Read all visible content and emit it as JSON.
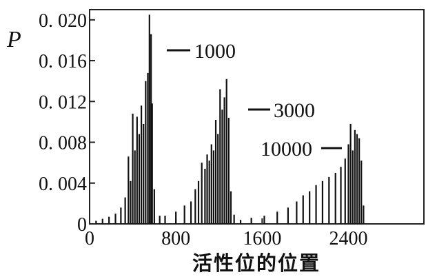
{
  "chart_data": {
    "type": "bar",
    "xlabel": "活性位的位置",
    "ylabel": "P",
    "xlim": [
      0,
      3100
    ],
    "ylim": [
      0,
      0.021
    ],
    "x_ticks": [
      "0",
      "800",
      "1600",
      "2400"
    ],
    "x_tick_values": [
      0,
      800,
      1600,
      2400
    ],
    "y_ticks": [
      "0",
      "0. 004",
      "0. 008",
      "0. 012",
      "0. 016",
      "0. 020"
    ],
    "y_tick_values": [
      0,
      0.004,
      0.008,
      0.012,
      0.016,
      0.02
    ],
    "grid": false,
    "series": [
      {
        "name": "1000",
        "x": [
          60,
          120,
          180,
          240,
          290,
          330,
          360,
          380,
          400,
          420,
          440,
          460,
          480,
          500,
          520,
          540,
          555,
          570,
          580,
          600,
          650
        ],
        "values": [
          0.0003,
          0.0005,
          0.0007,
          0.001,
          0.0016,
          0.0026,
          0.0066,
          0.0042,
          0.0108,
          0.0072,
          0.0105,
          0.0088,
          0.0116,
          0.0098,
          0.014,
          0.0148,
          0.0205,
          0.0186,
          0.0118,
          0.0034,
          0.0008
        ]
      },
      {
        "name": "3000",
        "x": [
          700,
          800,
          880,
          940,
          980,
          1010,
          1040,
          1070,
          1090,
          1110,
          1130,
          1150,
          1170,
          1190,
          1210,
          1230,
          1250,
          1270,
          1290,
          1310,
          1340
        ],
        "values": [
          0.0008,
          0.0012,
          0.0018,
          0.0022,
          0.0034,
          0.0042,
          0.006,
          0.0054,
          0.0068,
          0.0062,
          0.0078,
          0.0072,
          0.0102,
          0.0088,
          0.0132,
          0.0112,
          0.0124,
          0.0142,
          0.0104,
          0.0032,
          0.0009
        ]
      },
      {
        "name": "10000",
        "x": [
          1400,
          1500,
          1620,
          1740,
          1840,
          1920,
          1980,
          2040,
          2100,
          2160,
          2220,
          2280,
          2330,
          2370,
          2400,
          2420,
          2440,
          2460,
          2480,
          2500,
          2520,
          2540
        ],
        "values": [
          0.0004,
          0.0006,
          0.0008,
          0.0012,
          0.0016,
          0.0022,
          0.0028,
          0.0032,
          0.0038,
          0.0042,
          0.0046,
          0.005,
          0.0056,
          0.0064,
          0.0078,
          0.0098,
          0.0072,
          0.0092,
          0.0088,
          0.0084,
          0.0062,
          0.0018
        ]
      }
    ],
    "annotations": [
      {
        "text": "1000",
        "series": "1000"
      },
      {
        "text": "3000",
        "series": "3000"
      },
      {
        "text": "10000",
        "series": "10000"
      }
    ]
  }
}
